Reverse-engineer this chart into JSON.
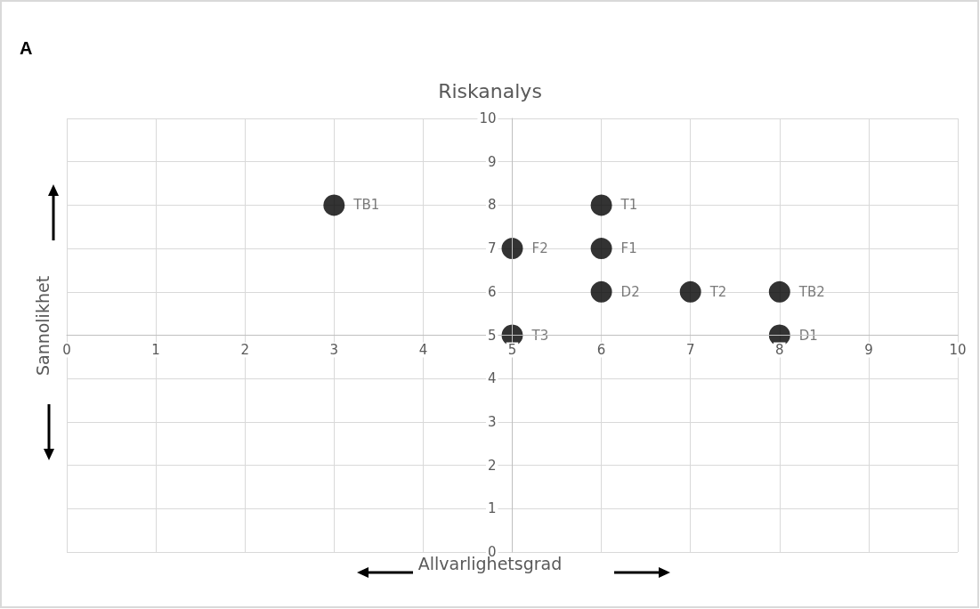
{
  "chart_data": {
    "type": "scatter",
    "title": "Riskanalys",
    "xlabel": "Allvarlighetsgrad",
    "ylabel": "Sannolikhet",
    "annotations": [
      "A"
    ],
    "x": [
      3,
      6,
      5,
      6,
      6,
      7,
      8,
      5,
      8
    ],
    "values": [
      8,
      8,
      7,
      7,
      6,
      6,
      6,
      5,
      5
    ],
    "value_labels": [
      "TB1",
      "T1",
      "F2",
      "F1",
      "D2",
      "T2",
      "TB2",
      "T3",
      "D1"
    ],
    "color": "#000000",
    "marker": "circle",
    "xlim": [
      0,
      10
    ],
    "xticks": [
      0,
      1,
      2,
      3,
      4,
      5,
      6,
      7,
      8,
      9,
      10
    ],
    "ylim": [
      0,
      10
    ],
    "yticks": [
      0,
      1,
      2,
      3,
      4,
      5,
      6,
      7,
      8,
      9,
      10
    ],
    "grid": true
  }
}
